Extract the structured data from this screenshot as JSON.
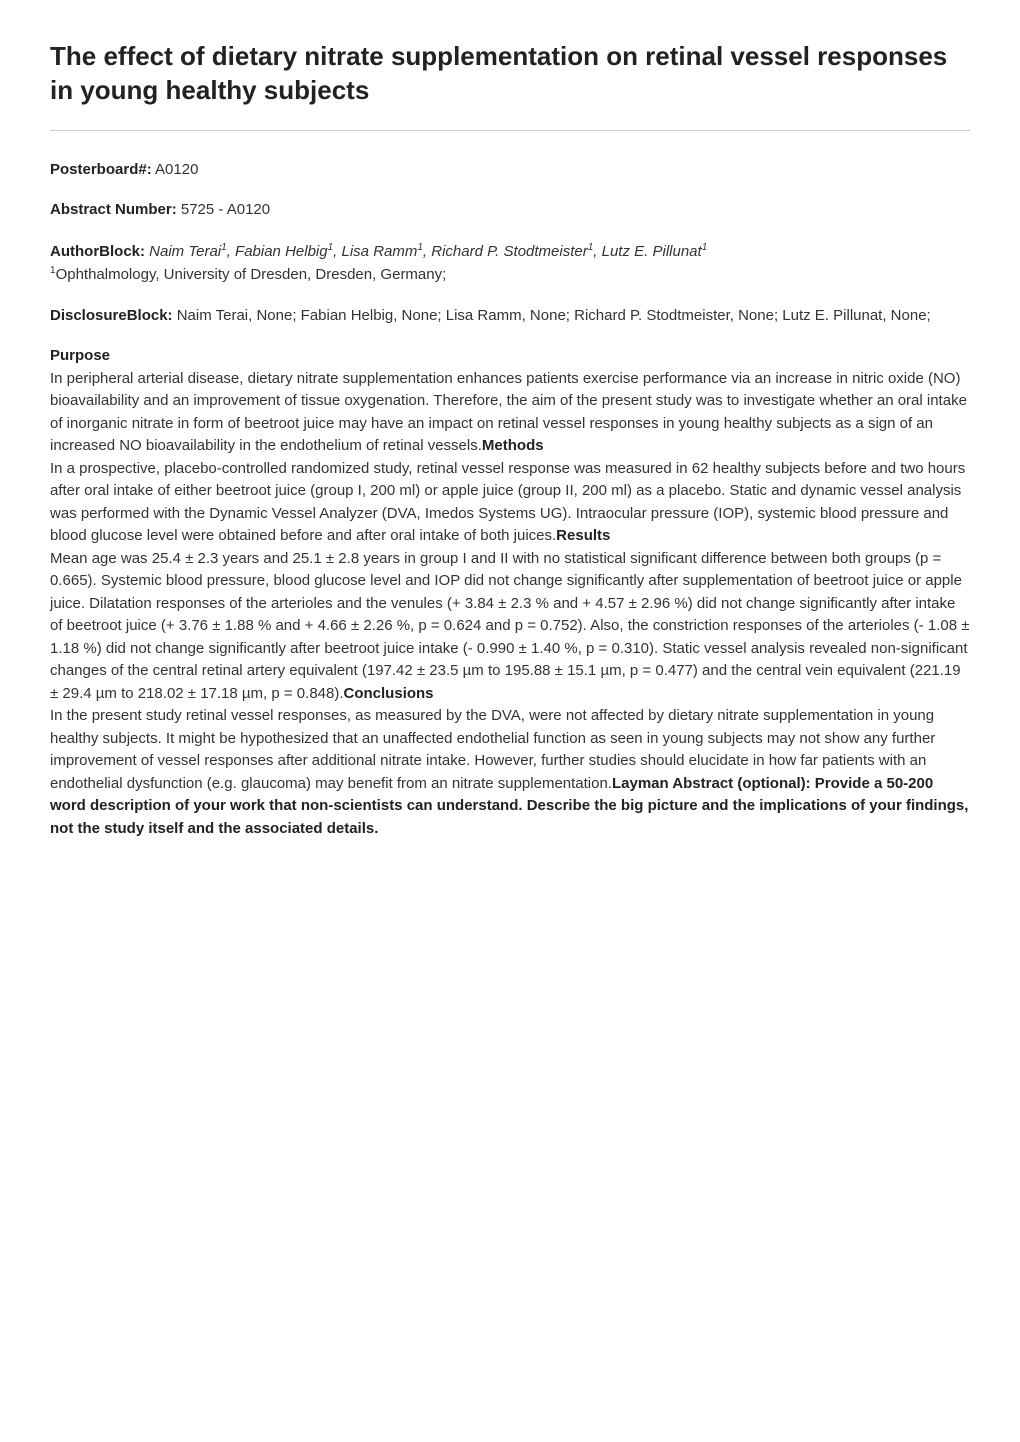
{
  "title": "The effect of dietary nitrate supplementation on retinal vessel responses in young healthy subjects",
  "posterboard": {
    "label": "Posterboard#:",
    "value": "A0120"
  },
  "abstract_number": {
    "label": "Abstract Number:",
    "value": "5725 - A0120"
  },
  "author_block": {
    "label": "AuthorBlock:",
    "authors_html": "Naim Terai",
    "a1_sup": "1",
    "a2": ", Fabian Helbig",
    "a2_sup": "1",
    "a3": ", Lisa Ramm",
    "a3_sup": "1",
    "a4": ", Richard P. Stodtmeister",
    "a4_sup": "1",
    "a5": ", Lutz E. Pillunat",
    "a5_sup": "1",
    "affiliation_sup": "1",
    "affiliation": "Ophthalmology, University of Dresden, Dresden, Germany;"
  },
  "disclosure_block": {
    "label": "DisclosureBlock:",
    "value": "Naim Terai, None; Fabian Helbig, None; Lisa Ramm, None; Richard P. Stodtmeister, None; Lutz E. Pillunat, None;"
  },
  "sections": {
    "purpose": {
      "heading": "Purpose",
      "text": "In peripheral arterial disease, dietary nitrate supplementation enhances patients exercise performance via an increase in nitric oxide (NO) bioavailability and an improvement of tissue oxygenation. Therefore, the aim of the present study was to investigate whether an oral intake of inorganic nitrate in form of beetroot juice may have an impact on retinal vessel responses in young healthy subjects as a sign of an increased NO bioavailability in the endothelium of retinal vessels."
    },
    "methods": {
      "heading": "Methods",
      "text": "In a prospective, placebo-controlled randomized study, retinal vessel response was measured in 62 healthy subjects before and two hours after oral intake of either beetroot juice (group I, 200 ml) or apple juice (group II, 200 ml) as a placebo. Static and dynamic vessel analysis was performed with the Dynamic Vessel Analyzer (DVA, Imedos Systems UG). Intraocular pressure (IOP), systemic blood pressure and blood glucose level were obtained before and after oral intake of both juices."
    },
    "results": {
      "heading": "Results",
      "text": "Mean age was 25.4 ± 2.3 years and 25.1 ± 2.8 years in group I and II with no statistical significant difference between both groups (p = 0.665). Systemic blood pressure, blood glucose level and IOP did not change significantly after supplementation of beetroot juice or apple juice. Dilatation responses of the arterioles and the venules (+ 3.84 ± 2.3 % and + 4.57 ± 2.96 %) did not change significantly after intake of beetroot juice (+ 3.76 ± 1.88 % and + 4.66 ± 2.26 %, p = 0.624 and p = 0.752). Also, the constriction responses of the arterioles (- 1.08 ± 1.18 %) did not change significantly after beetroot juice intake (- 0.990 ± 1.40 %, p = 0.310). Static vessel analysis revealed non-significant changes of the central retinal artery equivalent (197.42 ± 23.5 µm to 195.88 ± 15.1 µm, p = 0.477) and the central vein equivalent (221.19 ± 29.4 µm to 218.02 ± 17.18 µm, p = 0.848)."
    },
    "conclusions": {
      "heading": "Conclusions",
      "text": "In the present study retinal vessel responses, as measured by the DVA, were not affected by dietary nitrate supplementation in young healthy subjects. It might be hypothesized that an unaffected endothelial function as seen in young subjects may not show any further improvement of vessel responses after additional nitrate intake. However, further studies should elucidate in how far patients with an endothelial dysfunction (e.g. glaucoma) may benefit from an nitrate supplementation."
    },
    "layman": {
      "heading": "Layman Abstract (optional): Provide a 50-200 word description of your work that non-scientists can understand. Describe the big picture and the implications of your findings, not the study itself and the associated details."
    }
  },
  "style": {
    "background_color": "#ffffff",
    "text_color": "#333333",
    "heading_color": "#222222",
    "divider_color": "#cccccc",
    "title_fontsize": 26,
    "body_fontsize": 15,
    "font_family": "Arial, Helvetica, sans-serif"
  }
}
